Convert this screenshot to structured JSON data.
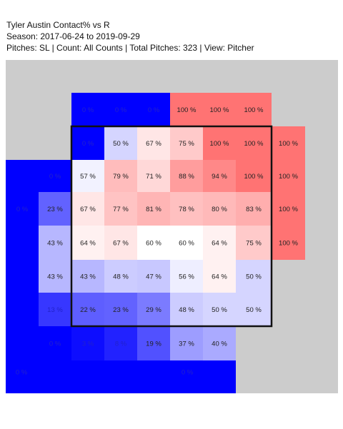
{
  "header": {
    "title": "Tyler Austin Contact% vs R",
    "season": "Season: 2017-06-24 to 2019-09-29",
    "filters": "Pitches: SL | Count: All Counts | Total Pitches: 323 | View: Pitcher"
  },
  "chart_data": {
    "type": "heatmap",
    "title": "Tyler Austin Contact% vs R",
    "metric": "Contact%",
    "color_scale": {
      "low": "#0000ff",
      "mid": "#ffffff",
      "high": "#ff0000"
    },
    "cells": [
      {
        "label": "0 %",
        "value": 0,
        "col": 2,
        "row": 1
      },
      {
        "label": "0 %",
        "value": 0,
        "col": 3,
        "row": 1
      },
      {
        "label": "0 %",
        "value": 0,
        "col": 4,
        "row": 1
      },
      {
        "label": "100 %",
        "value": 100,
        "col": 5,
        "row": 1
      },
      {
        "label": "100 %",
        "value": 100,
        "col": 6,
        "row": 1
      },
      {
        "label": "100 %",
        "value": 100,
        "col": 7,
        "row": 1
      },
      {
        "label": "0 %",
        "value": 0,
        "col": 2,
        "row": 2
      },
      {
        "label": "50 %",
        "value": 50,
        "col": 3,
        "row": 2
      },
      {
        "label": "67 %",
        "value": 67,
        "col": 4,
        "row": 2
      },
      {
        "label": "75 %",
        "value": 75,
        "col": 5,
        "row": 2
      },
      {
        "label": "100 %",
        "value": 100,
        "col": 6,
        "row": 2
      },
      {
        "label": "100 %",
        "value": 100,
        "col": 7,
        "row": 2
      },
      {
        "label": "100 %",
        "value": 100,
        "col": 8,
        "row": 2
      },
      {
        "label": "0 %",
        "value": 0,
        "col": 1,
        "row": 3
      },
      {
        "label": "57 %",
        "value": 57,
        "col": 2,
        "row": 3
      },
      {
        "label": "79 %",
        "value": 79,
        "col": 3,
        "row": 3
      },
      {
        "label": "71 %",
        "value": 71,
        "col": 4,
        "row": 3
      },
      {
        "label": "88 %",
        "value": 88,
        "col": 5,
        "row": 3
      },
      {
        "label": "94 %",
        "value": 94,
        "col": 6,
        "row": 3
      },
      {
        "label": "100 %",
        "value": 100,
        "col": 7,
        "row": 3
      },
      {
        "label": "100 %",
        "value": 100,
        "col": 8,
        "row": 3
      },
      {
        "label": "0 %",
        "value": 0,
        "col": 0,
        "row": 4
      },
      {
        "label": "23 %",
        "value": 23,
        "col": 1,
        "row": 4
      },
      {
        "label": "67 %",
        "value": 67,
        "col": 2,
        "row": 4
      },
      {
        "label": "77 %",
        "value": 77,
        "col": 3,
        "row": 4
      },
      {
        "label": "81 %",
        "value": 81,
        "col": 4,
        "row": 4
      },
      {
        "label": "78 %",
        "value": 78,
        "col": 5,
        "row": 4
      },
      {
        "label": "80 %",
        "value": 80,
        "col": 6,
        "row": 4
      },
      {
        "label": "83 %",
        "value": 83,
        "col": 7,
        "row": 4
      },
      {
        "label": "100 %",
        "value": 100,
        "col": 8,
        "row": 4
      },
      {
        "label": "43 %",
        "value": 43,
        "col": 1,
        "row": 5
      },
      {
        "label": "64 %",
        "value": 64,
        "col": 2,
        "row": 5
      },
      {
        "label": "67 %",
        "value": 67,
        "col": 3,
        "row": 5
      },
      {
        "label": "60 %",
        "value": 60,
        "col": 4,
        "row": 5
      },
      {
        "label": "60 %",
        "value": 60,
        "col": 5,
        "row": 5
      },
      {
        "label": "64 %",
        "value": 64,
        "col": 6,
        "row": 5
      },
      {
        "label": "75 %",
        "value": 75,
        "col": 7,
        "row": 5
      },
      {
        "label": "100 %",
        "value": 100,
        "col": 8,
        "row": 5
      },
      {
        "label": "43 %",
        "value": 43,
        "col": 1,
        "row": 6
      },
      {
        "label": "43 %",
        "value": 43,
        "col": 2,
        "row": 6
      },
      {
        "label": "48 %",
        "value": 48,
        "col": 3,
        "row": 6
      },
      {
        "label": "47 %",
        "value": 47,
        "col": 4,
        "row": 6
      },
      {
        "label": "56 %",
        "value": 56,
        "col": 5,
        "row": 6
      },
      {
        "label": "64 %",
        "value": 64,
        "col": 6,
        "row": 6
      },
      {
        "label": "50 %",
        "value": 50,
        "col": 7,
        "row": 6
      },
      {
        "label": "13 %",
        "value": 13,
        "col": 1,
        "row": 7
      },
      {
        "label": "22 %",
        "value": 22,
        "col": 2,
        "row": 7
      },
      {
        "label": "23 %",
        "value": 23,
        "col": 3,
        "row": 7
      },
      {
        "label": "29 %",
        "value": 29,
        "col": 4,
        "row": 7
      },
      {
        "label": "48 %",
        "value": 48,
        "col": 5,
        "row": 7
      },
      {
        "label": "50 %",
        "value": 50,
        "col": 6,
        "row": 7
      },
      {
        "label": "50 %",
        "value": 50,
        "col": 7,
        "row": 7
      },
      {
        "label": "0 %",
        "value": 0,
        "col": 1,
        "row": 8
      },
      {
        "label": "3 %",
        "value": 3,
        "col": 2,
        "row": 8
      },
      {
        "label": "8 %",
        "value": 8,
        "col": 3,
        "row": 8
      },
      {
        "label": "19 %",
        "value": 19,
        "col": 4,
        "row": 8
      },
      {
        "label": "37 %",
        "value": 37,
        "col": 5,
        "row": 8
      },
      {
        "label": "40 %",
        "value": 40,
        "col": 6,
        "row": 8
      }
    ],
    "outer_regions": [
      {
        "label": "0 %",
        "value": 0,
        "zone": "lower-left"
      },
      {
        "label": "0 %",
        "value": 0,
        "zone": "bottom"
      }
    ]
  }
}
